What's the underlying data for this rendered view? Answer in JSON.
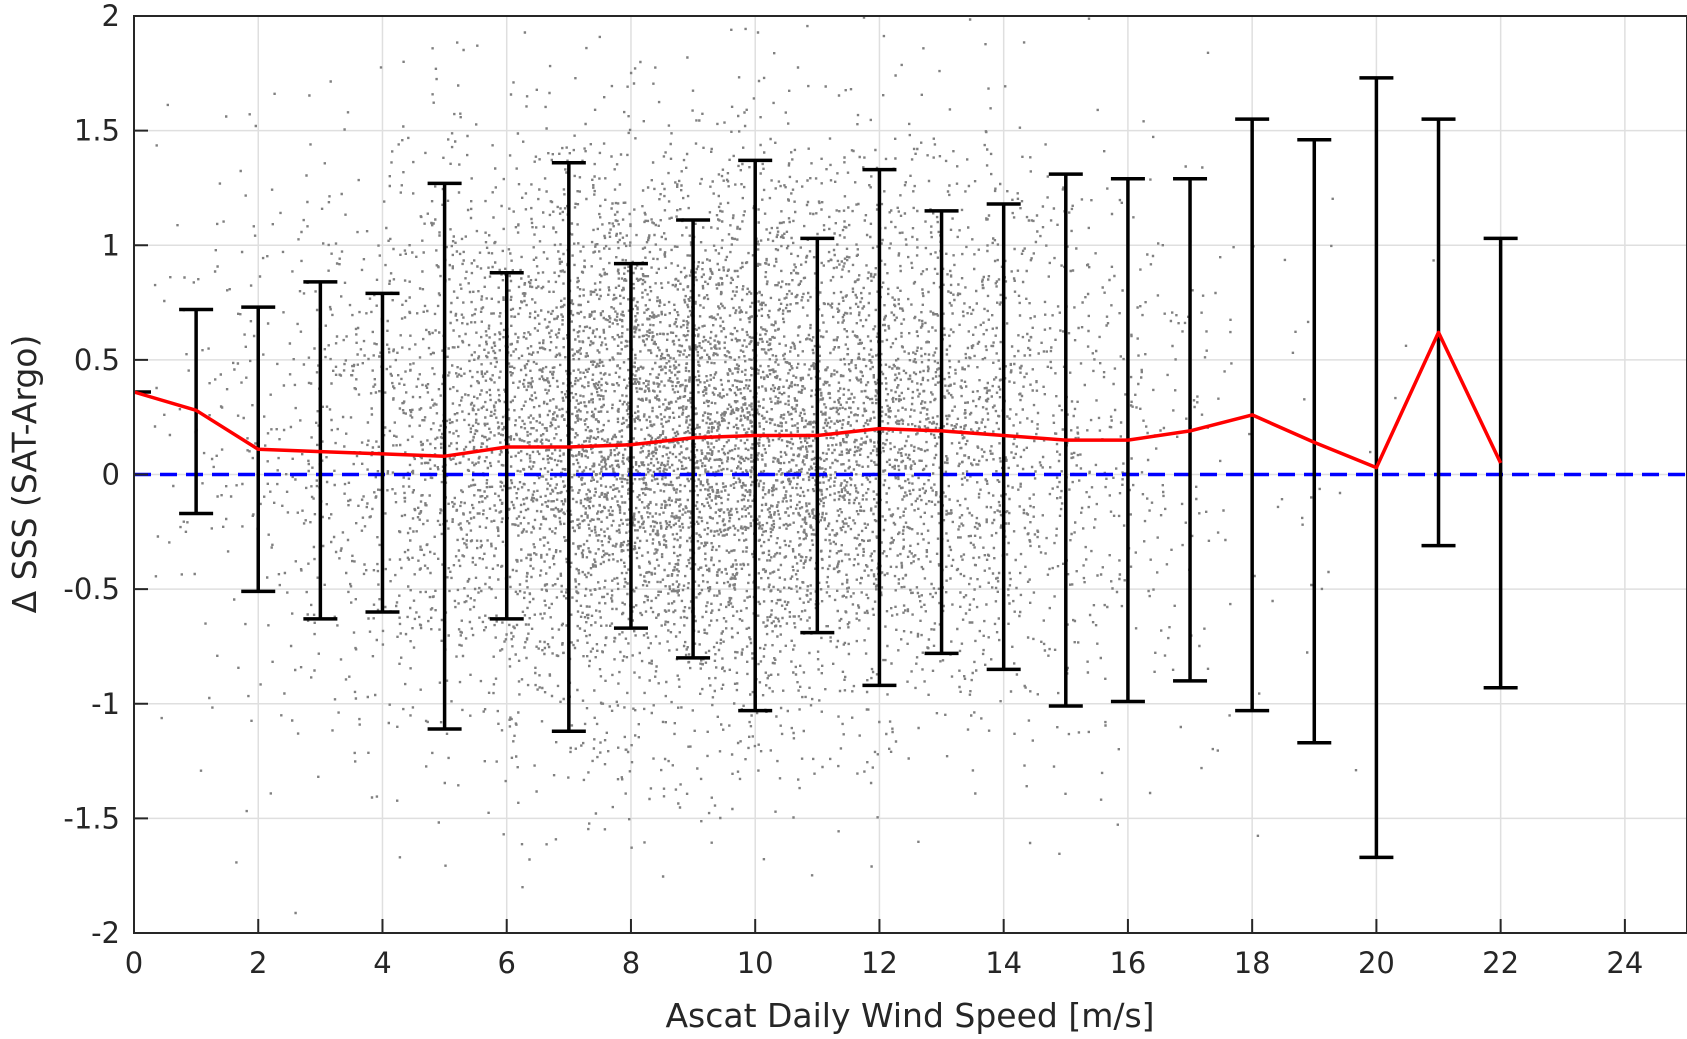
{
  "chart_data": {
    "type": "scatter",
    "title": "",
    "xlabel": "Ascat Daily Wind Speed [m/s]",
    "ylabel": "Δ SSS (SAT-Argo)",
    "xlim": [
      0,
      25
    ],
    "ylim": [
      -2,
      2
    ],
    "xticks": [
      "0",
      "2",
      "4",
      "6",
      "8",
      "10",
      "12",
      "14",
      "16",
      "18",
      "20",
      "22",
      "24"
    ],
    "yticks": [
      "-2",
      "-1.5",
      "-1",
      "-0.5",
      "0",
      "0.5",
      "1",
      "1.5",
      "2"
    ],
    "grid": true,
    "legend": "none",
    "scatter_color": "#808080",
    "mean_line": {
      "color": "#ff0000",
      "x": [
        0,
        1,
        2,
        3,
        4,
        5,
        6,
        7,
        8,
        9,
        10,
        11,
        12,
        13,
        14,
        15,
        16,
        17,
        18,
        19,
        20,
        21,
        22
      ],
      "y": [
        0.36,
        0.28,
        0.11,
        0.1,
        0.09,
        0.08,
        0.12,
        0.12,
        0.13,
        0.16,
        0.17,
        0.17,
        0.2,
        0.19,
        0.17,
        0.15,
        0.15,
        0.19,
        0.26,
        0.14,
        0.03,
        0.62,
        0.05
      ]
    },
    "error_bars": {
      "color": "#000000",
      "x": [
        1,
        2,
        3,
        4,
        5,
        6,
        7,
        8,
        9,
        10,
        11,
        12,
        13,
        14,
        15,
        16,
        17,
        18,
        19,
        20,
        21,
        22
      ],
      "upper": [
        0.72,
        0.73,
        0.84,
        0.79,
        1.27,
        0.88,
        1.36,
        0.92,
        1.11,
        1.37,
        1.03,
        1.33,
        1.15,
        1.18,
        1.31,
        1.29,
        1.29,
        1.55,
        1.46,
        1.73,
        1.55,
        1.03
      ],
      "lower": [
        -0.17,
        -0.51,
        -0.63,
        -0.6,
        -1.11,
        -0.63,
        -1.12,
        -0.67,
        -0.8,
        -1.03,
        -0.69,
        -0.92,
        -0.78,
        -0.85,
        -1.01,
        -0.99,
        -0.9,
        -1.03,
        -1.17,
        -1.67,
        -0.31,
        -0.93
      ]
    },
    "reference_line": {
      "y": 0,
      "color": "#0000ff",
      "style": "dashed"
    }
  }
}
